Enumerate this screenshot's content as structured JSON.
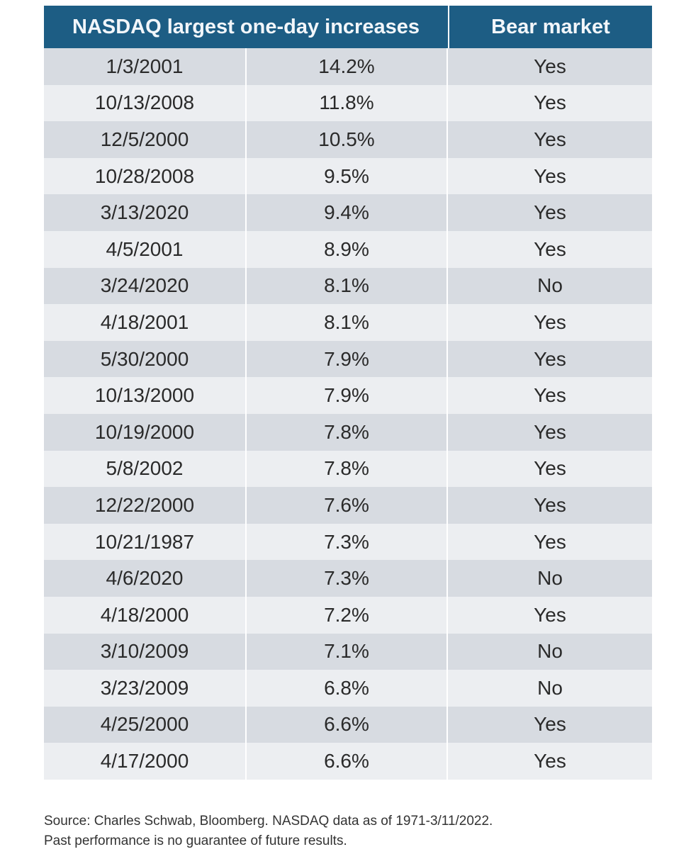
{
  "chart_data": {
    "type": "table",
    "title": "NASDAQ largest one-day increases",
    "columns": [
      "NASDAQ largest one-day increases",
      "Bear market"
    ],
    "rows": [
      {
        "date": "1/3/2001",
        "increase": "14.2%",
        "bear": "Yes"
      },
      {
        "date": "10/13/2008",
        "increase": "11.8%",
        "bear": "Yes"
      },
      {
        "date": "12/5/2000",
        "increase": "10.5%",
        "bear": "Yes"
      },
      {
        "date": "10/28/2008",
        "increase": "9.5%",
        "bear": "Yes"
      },
      {
        "date": "3/13/2020",
        "increase": "9.4%",
        "bear": "Yes"
      },
      {
        "date": "4/5/2001",
        "increase": "8.9%",
        "bear": "Yes"
      },
      {
        "date": "3/24/2020",
        "increase": "8.1%",
        "bear": "No"
      },
      {
        "date": "4/18/2001",
        "increase": "8.1%",
        "bear": "Yes"
      },
      {
        "date": "5/30/2000",
        "increase": "7.9%",
        "bear": "Yes"
      },
      {
        "date": "10/13/2000",
        "increase": "7.9%",
        "bear": "Yes"
      },
      {
        "date": "10/19/2000",
        "increase": "7.8%",
        "bear": "Yes"
      },
      {
        "date": "5/8/2002",
        "increase": "7.8%",
        "bear": "Yes"
      },
      {
        "date": "12/22/2000",
        "increase": "7.6%",
        "bear": "Yes"
      },
      {
        "date": "10/21/1987",
        "increase": "7.3%",
        "bear": "Yes"
      },
      {
        "date": "4/6/2020",
        "increase": "7.3%",
        "bear": "No"
      },
      {
        "date": "4/18/2000",
        "increase": "7.2%",
        "bear": "Yes"
      },
      {
        "date": "3/10/2009",
        "increase": "7.1%",
        "bear": "No"
      },
      {
        "date": "3/23/2009",
        "increase": "6.8%",
        "bear": "No"
      },
      {
        "date": "4/25/2000",
        "increase": "6.6%",
        "bear": "Yes"
      },
      {
        "date": "4/17/2000",
        "increase": "6.6%",
        "bear": "Yes"
      }
    ],
    "header_color": "#1d5d84"
  },
  "footer": {
    "line1": "Source: Charles Schwab, Bloomberg. NASDAQ data as of 1971-3/11/2022.",
    "line2": "Past performance is no guarantee of future results."
  }
}
